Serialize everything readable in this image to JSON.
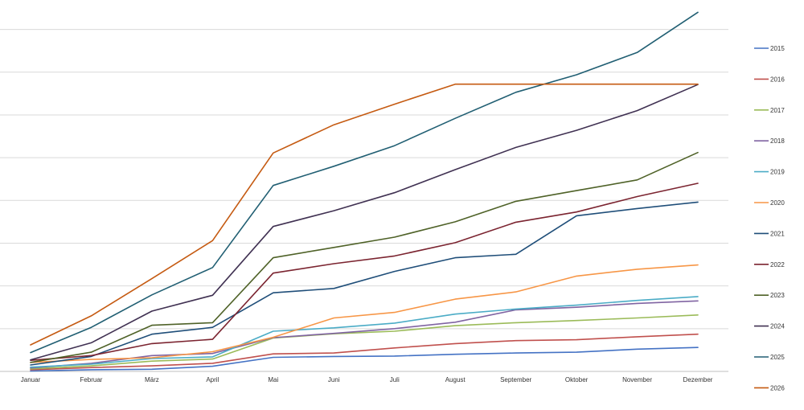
{
  "chart_data": {
    "type": "line",
    "title": "",
    "xlabel": "",
    "ylabel": "",
    "categories": [
      "Januar",
      "Februar",
      "März",
      "April",
      "Mai",
      "Juni",
      "Juli",
      "August",
      "September",
      "Oktober",
      "November",
      "Dezember"
    ],
    "ylim": [
      0,
      85
    ],
    "y_gridlines": [
      10,
      20,
      30,
      40,
      50,
      60,
      70,
      80
    ],
    "y_tick_labels_shown": false,
    "grid": "horizontal",
    "legend_position": "right",
    "series": [
      {
        "name": "2015",
        "color": "#4472c4",
        "values": [
          0.1,
          0.4,
          0.5,
          1.2,
          3.3,
          3.5,
          3.6,
          4.0,
          4.3,
          4.5,
          5.2,
          5.6
        ]
      },
      {
        "name": "2016",
        "color": "#c0504d",
        "values": [
          0.4,
          0.9,
          1.3,
          1.9,
          4.1,
          4.3,
          5.5,
          6.5,
          7.2,
          7.4,
          8.1,
          8.7
        ]
      },
      {
        "name": "2017",
        "color": "#9bbb59",
        "values": [
          0.6,
          1.3,
          2.4,
          2.9,
          7.8,
          8.8,
          9.4,
          10.7,
          11.4,
          11.9,
          12.5,
          13.2
        ]
      },
      {
        "name": "2018",
        "color": "#8064a2",
        "values": [
          0.8,
          1.9,
          3.7,
          4.2,
          7.9,
          8.9,
          10.0,
          11.5,
          14.4,
          15.0,
          15.9,
          16.5
        ]
      },
      {
        "name": "2019",
        "color": "#4bacc6",
        "values": [
          1.0,
          1.7,
          3.0,
          3.4,
          9.4,
          10.2,
          11.3,
          13.4,
          14.6,
          15.5,
          16.6,
          17.5
        ]
      },
      {
        "name": "2020",
        "color": "#f79646",
        "values": [
          2.1,
          2.8,
          3.2,
          4.6,
          8.0,
          12.5,
          13.8,
          16.9,
          18.6,
          22.3,
          23.9,
          24.9
        ]
      },
      {
        "name": "2021",
        "color": "#1f4e79",
        "values": [
          1.5,
          3.5,
          8.7,
          10.3,
          18.4,
          19.4,
          23.4,
          26.6,
          27.4,
          36.4,
          38.1,
          39.6
        ]
      },
      {
        "name": "2022",
        "color": "#7b2430",
        "values": [
          2.6,
          3.7,
          6.5,
          7.5,
          23.0,
          25.2,
          27.0,
          30.1,
          34.9,
          37.3,
          40.9,
          44.0
        ]
      },
      {
        "name": "2023",
        "color": "#4f6228",
        "values": [
          2.1,
          4.5,
          10.8,
          11.4,
          26.6,
          29.0,
          31.4,
          35.0,
          39.8,
          42.3,
          44.8,
          51.2
        ]
      },
      {
        "name": "2024",
        "color": "#403152",
        "values": [
          2.7,
          6.7,
          14.1,
          17.8,
          33.9,
          37.6,
          41.8,
          47.2,
          52.4,
          56.4,
          61.0,
          67.1
        ]
      },
      {
        "name": "2025",
        "color": "#215f73",
        "values": [
          4.4,
          10.3,
          17.9,
          24.3,
          43.5,
          48.0,
          52.8,
          59.2,
          65.3,
          69.4,
          74.6,
          84.0
        ]
      },
      {
        "name": "2026",
        "color": "#c55a11",
        "values": [
          6.2,
          13.0,
          21.7,
          30.6,
          51.1,
          57.7,
          62.5,
          67.2,
          67.2,
          67.2,
          67.2,
          67.2
        ]
      }
    ]
  }
}
